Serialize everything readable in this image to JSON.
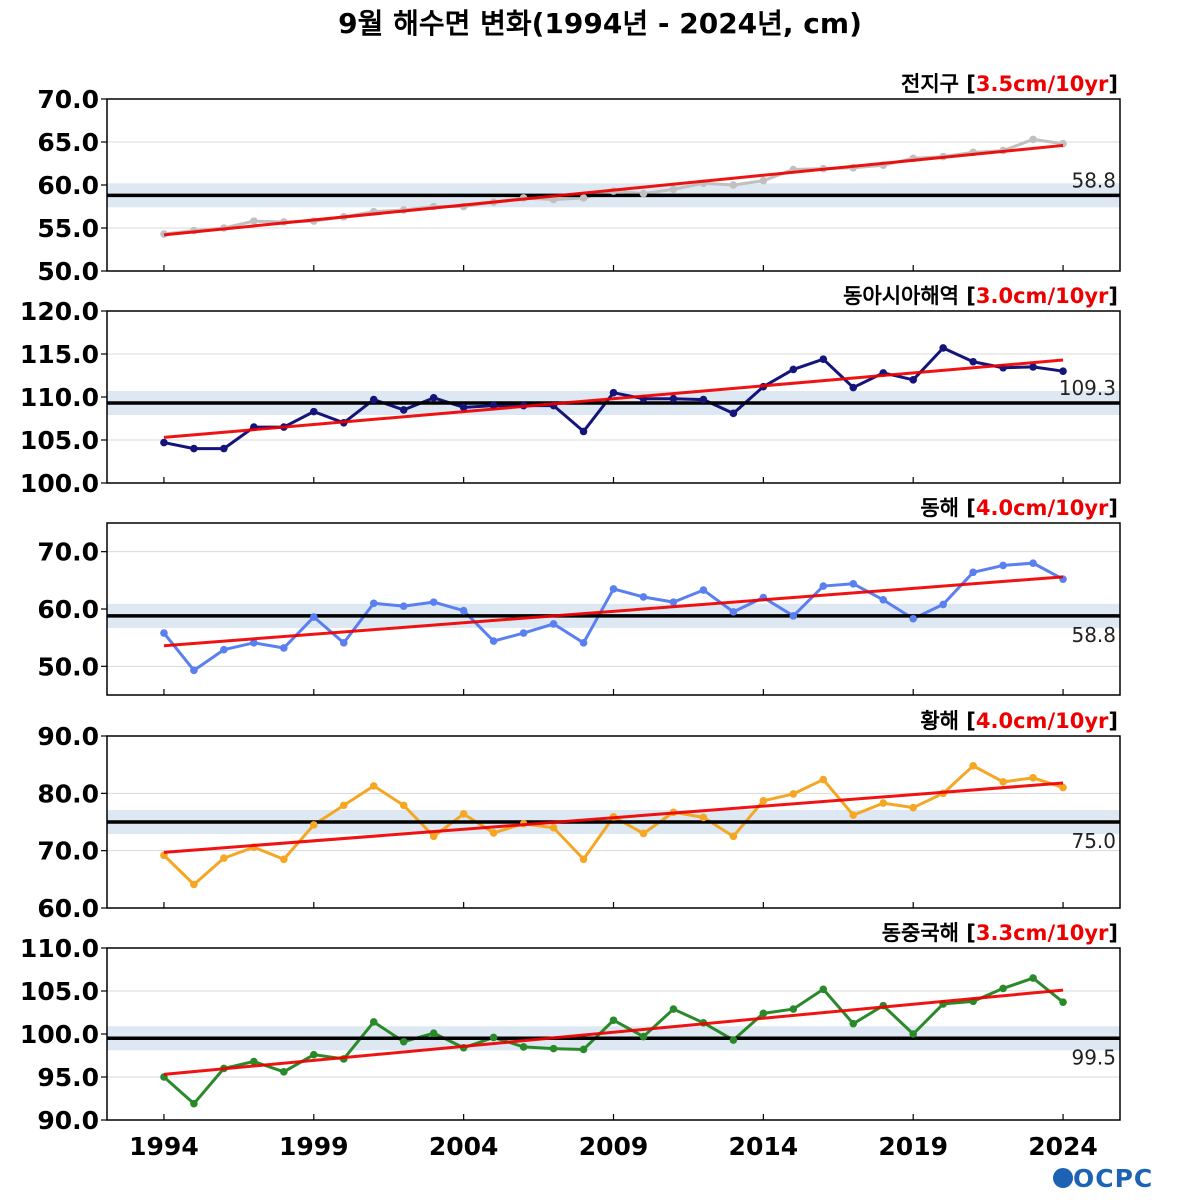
{
  "title": "9월 해수면 변화(1994년 - 2024년, cm)",
  "logo": "OCPC",
  "colors": {
    "trend": "#ee0000",
    "mean_line": "#000000",
    "mean_band": "#dde8f2",
    "grid": "#d9d9d9"
  },
  "chart_data": [
    {
      "type": "line",
      "name": "전지구",
      "rate": "3.5cm/10yr",
      "color": "#c0c0c0",
      "years": [
        1994,
        1995,
        1996,
        1997,
        1998,
        1999,
        2000,
        2001,
        2002,
        2003,
        2004,
        2005,
        2006,
        2007,
        2008,
        2009,
        2010,
        2011,
        2012,
        2013,
        2014,
        2015,
        2016,
        2017,
        2018,
        2019,
        2020,
        2021,
        2022,
        2023,
        2024
      ],
      "values": [
        54.3,
        54.7,
        55.0,
        55.8,
        55.7,
        55.8,
        56.3,
        56.9,
        57.1,
        57.5,
        57.5,
        58.0,
        58.5,
        58.3,
        58.5,
        59.3,
        59.0,
        59.5,
        60.2,
        60.0,
        60.5,
        61.8,
        61.9,
        62.0,
        62.3,
        63.1,
        63.3,
        63.8,
        64.0,
        65.3,
        64.8
      ],
      "mean": 58.8,
      "mean_label": "58.8",
      "trend": [
        54.2,
        64.6
      ],
      "ylim": [
        50,
        70
      ],
      "yticks": [
        "50.0",
        "55.0",
        "60.0",
        "65.0",
        "70.0"
      ],
      "ytick_values": [
        50,
        55,
        60,
        65,
        70
      ]
    },
    {
      "type": "line",
      "name": "동아시아해역",
      "rate": "3.0cm/10yr",
      "color": "#14147a",
      "years": [
        1994,
        1995,
        1996,
        1997,
        1998,
        1999,
        2000,
        2001,
        2002,
        2003,
        2004,
        2005,
        2006,
        2007,
        2008,
        2009,
        2010,
        2011,
        2012,
        2013,
        2014,
        2015,
        2016,
        2017,
        2018,
        2019,
        2020,
        2021,
        2022,
        2023,
        2024
      ],
      "values": [
        104.7,
        104.0,
        104.0,
        106.5,
        106.5,
        108.3,
        107.0,
        109.7,
        108.5,
        109.9,
        108.8,
        109.0,
        109.0,
        109.0,
        106.0,
        110.5,
        109.8,
        109.8,
        109.7,
        108.1,
        111.2,
        113.2,
        114.4,
        111.1,
        112.8,
        112.0,
        115.7,
        114.1,
        113.4,
        113.5,
        113.0
      ],
      "mean": 109.3,
      "mean_label": "109.3",
      "trend": [
        105.3,
        114.3
      ],
      "ylim": [
        100,
        120
      ],
      "yticks": [
        "100.0",
        "105.0",
        "110.0",
        "115.0",
        "120.0"
      ],
      "ytick_values": [
        100,
        105,
        110,
        115,
        120
      ]
    },
    {
      "type": "line",
      "name": "동해",
      "rate": "4.0cm/10yr",
      "color": "#5a7ff0",
      "years": [
        1994,
        1995,
        1996,
        1997,
        1998,
        1999,
        2000,
        2001,
        2002,
        2003,
        2004,
        2005,
        2006,
        2007,
        2008,
        2009,
        2010,
        2011,
        2012,
        2013,
        2014,
        2015,
        2016,
        2017,
        2018,
        2019,
        2020,
        2021,
        2022,
        2023,
        2024
      ],
      "values": [
        55.8,
        49.3,
        52.9,
        54.1,
        53.2,
        58.6,
        54.1,
        61.0,
        60.5,
        61.2,
        59.7,
        54.4,
        55.8,
        57.4,
        54.1,
        63.5,
        62.1,
        61.2,
        63.3,
        59.5,
        62.0,
        58.8,
        64.0,
        64.4,
        61.6,
        58.3,
        60.8,
        66.4,
        67.6,
        68.0,
        65.2
      ],
      "mean": 58.8,
      "mean_label": "58.8",
      "trend": [
        53.6,
        65.6
      ],
      "ylim": [
        45,
        75
      ],
      "yticks": [
        "50.0",
        "60.0",
        "70.0"
      ],
      "ytick_values": [
        50,
        60,
        70
      ]
    },
    {
      "type": "line",
      "name": "황해",
      "rate": "4.0cm/10yr",
      "color": "#f5a623",
      "years": [
        1994,
        1995,
        1996,
        1997,
        1998,
        1999,
        2000,
        2001,
        2002,
        2003,
        2004,
        2005,
        2006,
        2007,
        2008,
        2009,
        2010,
        2011,
        2012,
        2013,
        2014,
        2015,
        2016,
        2017,
        2018,
        2019,
        2020,
        2021,
        2022,
        2023,
        2024
      ],
      "values": [
        69.2,
        64.1,
        68.7,
        70.6,
        68.5,
        74.5,
        77.9,
        81.3,
        77.9,
        72.5,
        76.4,
        73.1,
        74.7,
        74.0,
        68.5,
        75.9,
        73.0,
        76.7,
        75.8,
        72.5,
        78.7,
        79.9,
        82.4,
        76.2,
        78.3,
        77.5,
        80.0,
        84.8,
        82.0,
        82.7,
        81.0
      ],
      "mean": 75.0,
      "mean_label": "75.0",
      "trend": [
        69.7,
        81.8
      ],
      "ylim": [
        60,
        90
      ],
      "yticks": [
        "60.0",
        "70.0",
        "80.0",
        "90.0"
      ],
      "ytick_values": [
        60,
        70,
        80,
        90
      ]
    },
    {
      "type": "line",
      "name": "동중국해",
      "rate": "3.3cm/10yr",
      "color": "#2a8a2a",
      "years": [
        1994,
        1995,
        1996,
        1997,
        1998,
        1999,
        2000,
        2001,
        2002,
        2003,
        2004,
        2005,
        2006,
        2007,
        2008,
        2009,
        2010,
        2011,
        2012,
        2013,
        2014,
        2015,
        2016,
        2017,
        2018,
        2019,
        2020,
        2021,
        2022,
        2023,
        2024
      ],
      "values": [
        95.0,
        91.9,
        96.0,
        96.8,
        95.6,
        97.6,
        97.1,
        101.4,
        99.1,
        100.1,
        98.4,
        99.6,
        98.5,
        98.3,
        98.2,
        101.6,
        99.7,
        102.9,
        101.3,
        99.3,
        102.4,
        102.9,
        105.2,
        101.2,
        103.3,
        100.0,
        103.5,
        103.8,
        105.3,
        106.5,
        103.7
      ],
      "mean": 99.5,
      "mean_label": "99.5",
      "trend": [
        95.3,
        105.1
      ],
      "ylim": [
        90,
        110
      ],
      "yticks": [
        "90.0",
        "95.0",
        "100.0",
        "105.0",
        "110.0"
      ],
      "ytick_values": [
        90,
        95,
        100,
        105,
        110
      ]
    }
  ],
  "x_axis": {
    "tick_labels": [
      "1994",
      "1999",
      "2004",
      "2009",
      "2014",
      "2019",
      "2024"
    ],
    "tick_values": [
      1994,
      1999,
      2004,
      2009,
      2014,
      2019,
      2024
    ],
    "xlim": [
      1992.1,
      2025.9
    ]
  }
}
